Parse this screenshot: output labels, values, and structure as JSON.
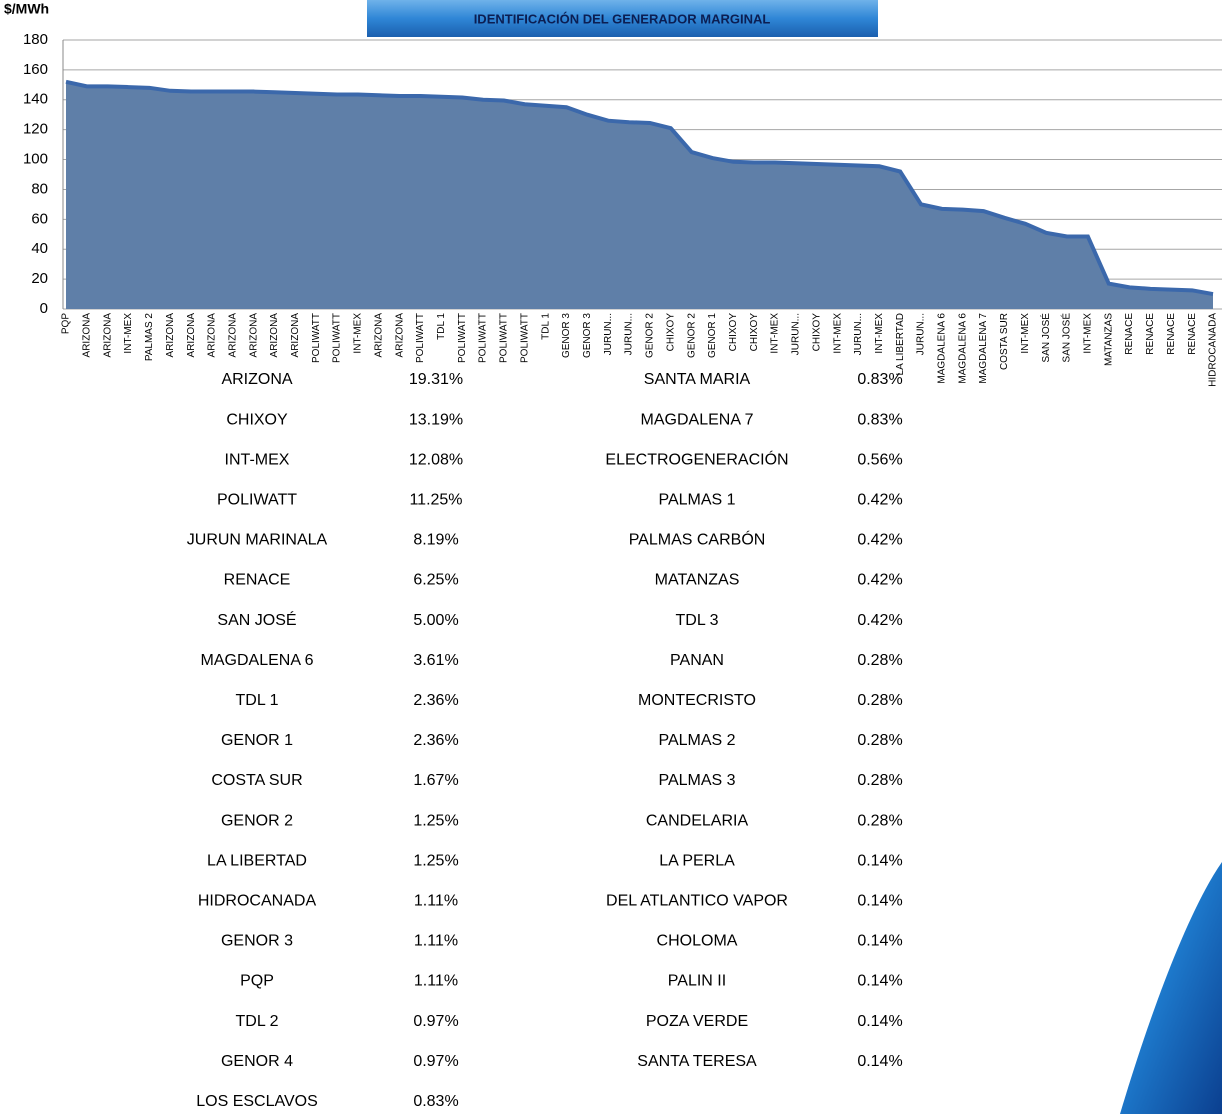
{
  "chart_data": {
    "type": "area",
    "title": "IDENTIFICACIÓN DEL GENERADOR MARGINAL",
    "y_label": "$/MWh",
    "categories": [
      "PQP",
      "ARIZONA",
      "ARIZONA",
      "INT-MEX",
      "PALMAS 2",
      "ARIZONA",
      "ARIZONA",
      "ARIZONA",
      "ARIZONA",
      "ARIZONA",
      "ARIZONA",
      "ARIZONA",
      "POLIWATT",
      "POLIWATT",
      "INT-MEX",
      "ARIZONA",
      "ARIZONA",
      "POLIWATT",
      "TDL 1",
      "POLIWATT",
      "POLIWATT",
      "POLIWATT",
      "POLIWATT",
      "TDL 1",
      "GENOR 3",
      "GENOR 3",
      "JURUN...",
      "JURUN...",
      "GENOR 2",
      "CHIXOY",
      "GENOR 2",
      "GENOR 1",
      "CHIXOY",
      "CHIXOY",
      "INT-MEX",
      "JURUN...",
      "CHIXOY",
      "INT-MEX",
      "JURUN...",
      "INT-MEX",
      "LA LIBERTAD",
      "JURUN...",
      "MAGDALENA 6",
      "MAGDALENA 6",
      "MAGDALENA 7",
      "COSTA SUR",
      "INT-MEX",
      "SAN JOSÉ",
      "SAN JOSÉ",
      "INT-MEX",
      "MATANZAS",
      "RENACE",
      "RENACE",
      "RENACE",
      "RENACE",
      "HIDROCANADA"
    ],
    "values": [
      152,
      149,
      149,
      148.5,
      148,
      146,
      145.5,
      145.5,
      145.5,
      145.5,
      145,
      144.5,
      144,
      143.5,
      143.5,
      143,
      142.5,
      142.5,
      142,
      141.5,
      140,
      139.5,
      137,
      136,
      135,
      130,
      126,
      125,
      124.5,
      121,
      105,
      101,
      98.5,
      98,
      98,
      97.5,
      97,
      96.5,
      96,
      95.5,
      92,
      70,
      67,
      66.5,
      65.5,
      61,
      57,
      51,
      48.5,
      48.5,
      17,
      14.5,
      13.5,
      13,
      12.5,
      10
    ],
    "color": "#5f7fa8",
    "line_color": "#3b68ab",
    "ylim": [
      0,
      180
    ],
    "yticks": [
      0,
      20,
      40,
      60,
      80,
      100,
      120,
      140,
      160,
      180
    ],
    "grid": true
  },
  "table": {
    "left": [
      [
        "ARIZONA",
        "19.31%"
      ],
      [
        "CHIXOY",
        "13.19%"
      ],
      [
        "INT-MEX",
        "12.08%"
      ],
      [
        "POLIWATT",
        "11.25%"
      ],
      [
        "JURUN MARINALA",
        "8.19%"
      ],
      [
        "RENACE",
        "6.25%"
      ],
      [
        "SAN JOSÉ",
        "5.00%"
      ],
      [
        "MAGDALENA 6",
        "3.61%"
      ],
      [
        "TDL 1",
        "2.36%"
      ],
      [
        "GENOR 1",
        "2.36%"
      ],
      [
        "COSTA SUR",
        "1.67%"
      ],
      [
        "GENOR 2",
        "1.25%"
      ],
      [
        "LA LIBERTAD",
        "1.25%"
      ],
      [
        "HIDROCANADA",
        "1.11%"
      ],
      [
        "GENOR 3",
        "1.11%"
      ],
      [
        "PQP",
        "1.11%"
      ],
      [
        "TDL 2",
        "0.97%"
      ],
      [
        "GENOR 4",
        "0.97%"
      ],
      [
        "LOS ESCLAVOS",
        "0.83%"
      ]
    ],
    "right": [
      [
        "SANTA MARIA",
        "0.83%"
      ],
      [
        "MAGDALENA 7",
        "0.83%"
      ],
      [
        "ELECTROGENERACIÓN",
        "0.56%"
      ],
      [
        "PALMAS 1",
        "0.42%"
      ],
      [
        "PALMAS CARBÓN",
        "0.42%"
      ],
      [
        "MATANZAS",
        "0.42%"
      ],
      [
        "TDL 3",
        "0.42%"
      ],
      [
        "PANAN",
        "0.28%"
      ],
      [
        "MONTECRISTO",
        "0.28%"
      ],
      [
        "PALMAS 2",
        "0.28%"
      ],
      [
        "PALMAS 3",
        "0.28%"
      ],
      [
        "CANDELARIA",
        "0.28%"
      ],
      [
        "LA PERLA",
        "0.14%"
      ],
      [
        "DEL ATLANTICO VAPOR",
        "0.14%"
      ],
      [
        "CHOLOMA",
        "0.14%"
      ],
      [
        "PALIN II",
        "0.14%"
      ],
      [
        "POZA VERDE",
        "0.14%"
      ],
      [
        "SANTA TERESA",
        "0.14%"
      ]
    ]
  }
}
